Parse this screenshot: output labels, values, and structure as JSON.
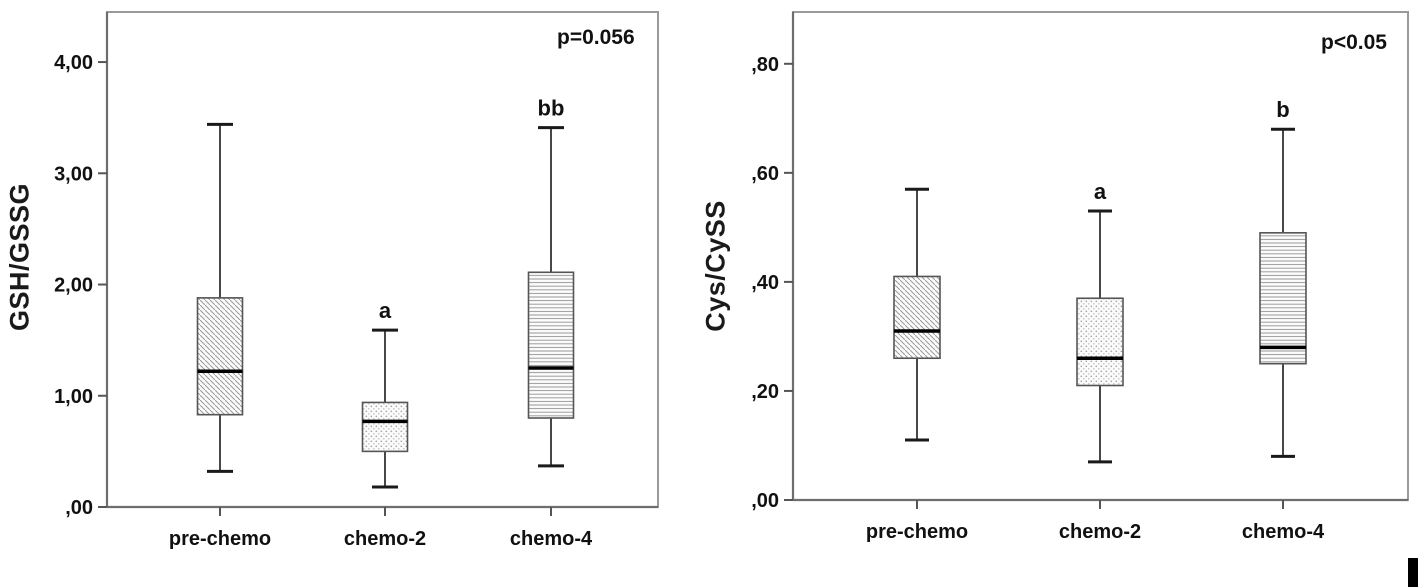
{
  "figure": {
    "background": "#ffffff",
    "border_color": "#9a9a9a",
    "box_line_color": "#555555",
    "median_color": "#000000"
  },
  "chart_data": [
    {
      "type": "box",
      "panel": "left",
      "title": "",
      "xlabel": "",
      "ylabel": "GSH/GSSG",
      "p_label": "p=0.056",
      "categories": [
        "pre-chemo",
        "chemo-2",
        "chemo-4"
      ],
      "ylim": [
        0,
        4.45
      ],
      "grid": false,
      "legend": "none",
      "yticks": [
        {
          "value": 0,
          "label": ",00"
        },
        {
          "value": 1,
          "label": "1,00"
        },
        {
          "value": 2,
          "label": "2,00"
        },
        {
          "value": 3,
          "label": "3,00"
        },
        {
          "value": 4,
          "label": "4,00"
        }
      ],
      "boxes": [
        {
          "category": "pre-chemo",
          "min": 0.32,
          "q1": 0.83,
          "median": 1.22,
          "q3": 1.88,
          "max": 3.44,
          "annotation": "",
          "pattern": "diagonal-hatch"
        },
        {
          "category": "chemo-2",
          "min": 0.18,
          "q1": 0.5,
          "median": 0.77,
          "q3": 0.94,
          "max": 1.59,
          "annotation": "a",
          "pattern": "dots"
        },
        {
          "category": "chemo-4",
          "min": 0.37,
          "q1": 0.8,
          "median": 1.25,
          "q3": 2.11,
          "max": 3.41,
          "annotation": "bb",
          "pattern": "horizontal-lines"
        }
      ]
    },
    {
      "type": "box",
      "panel": "right",
      "title": "",
      "xlabel": "",
      "ylabel": "Cys/CySS",
      "p_label": "p<0.05",
      "categories": [
        "pre-chemo",
        "chemo-2",
        "chemo-4"
      ],
      "ylim": [
        0,
        0.895
      ],
      "grid": false,
      "legend": "none",
      "yticks": [
        {
          "value": 0,
          "label": ",00"
        },
        {
          "value": 0.2,
          "label": ",20"
        },
        {
          "value": 0.4,
          "label": ",40"
        },
        {
          "value": 0.6,
          "label": ",60"
        },
        {
          "value": 0.8,
          "label": ",80"
        }
      ],
      "boxes": [
        {
          "category": "pre-chemo",
          "min": 0.11,
          "q1": 0.26,
          "median": 0.31,
          "q3": 0.41,
          "max": 0.57,
          "annotation": "",
          "pattern": "diagonal-hatch"
        },
        {
          "category": "chemo-2",
          "min": 0.07,
          "q1": 0.21,
          "median": 0.26,
          "q3": 0.37,
          "max": 0.53,
          "annotation": "a",
          "pattern": "dots"
        },
        {
          "category": "chemo-4",
          "min": 0.08,
          "q1": 0.25,
          "median": 0.28,
          "q3": 0.49,
          "max": 0.68,
          "annotation": "b",
          "pattern": "horizontal-lines"
        }
      ]
    }
  ]
}
